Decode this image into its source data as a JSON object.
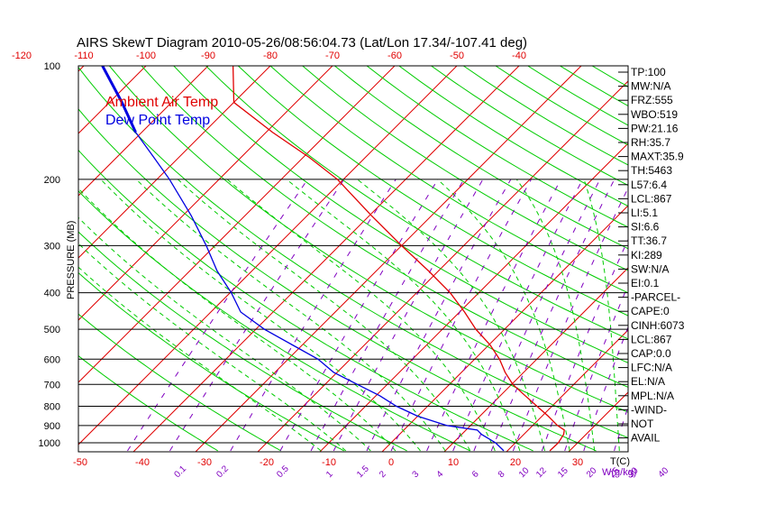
{
  "title": "AIRS SkewT Diagram 2010-05-26/08:56:04.73 (Lat/Lon 17.34/-107.41 deg)",
  "colors": {
    "temp": "#e00000",
    "dewpoint": "#0000e0",
    "isotherm": "#e00000",
    "dry_adiabat": "#00cc00",
    "moist_adiabat": "#00cc00",
    "mixing_ratio": "#8000c0",
    "frame": "#000000"
  },
  "chart_data": {
    "type": "line",
    "title": "AIRS SkewT Diagram 2010-05-26/08:56:04.73 (Lat/Lon 17.34/-107.41 deg)",
    "ylabel": "PRESSURE (MB)",
    "xlabel": "T(C)",
    "mixing_ratio_label": "W(g/kg)",
    "pressure_ticks": [
      "100",
      "200",
      "300",
      "400",
      "500",
      "600",
      "700",
      "800",
      "900",
      "1000"
    ],
    "bottom_temp_ticks": [
      "-50",
      "-40",
      "-30",
      "-20",
      "-10",
      "0",
      "10",
      "20",
      "30"
    ],
    "top_temp_ticks": [
      "-120",
      "-110",
      "-100",
      "-90",
      "-80",
      "-70",
      "-60",
      "-50",
      "-40"
    ],
    "mixing_ratio_ticks": [
      "0.1",
      "0.2",
      "0.5",
      "1",
      "1.5",
      "2",
      "3",
      "4",
      "6",
      "8",
      "10",
      "12",
      "15",
      "20",
      "25",
      "30",
      "40"
    ],
    "ylim": [
      1050,
      100
    ],
    "series": [
      {
        "name": "Ambient Air Temp",
        "pressure": [
          1050,
          1000,
          950,
          925,
          900,
          850,
          800,
          750,
          700,
          650,
          600,
          550,
          500,
          450,
          400,
          350,
          300,
          250,
          200,
          175,
          150,
          125,
          100
        ],
        "values": [
          26.8,
          26.9,
          26.4,
          25.8,
          24.0,
          21.0,
          17.6,
          14.0,
          10.2,
          7.0,
          4.0,
          0.2,
          -4.6,
          -9.2,
          -14.6,
          -21.6,
          -30.0,
          -39.6,
          -51.0,
          -59.0,
          -69.0,
          -80.0,
          -86.0
        ]
      },
      {
        "name": "Dew Point Temp",
        "pressure": [
          1050,
          1000,
          950,
          925,
          900,
          850,
          800,
          750,
          700,
          650,
          600,
          550,
          500,
          450,
          400,
          350,
          300,
          250,
          200,
          175,
          150,
          125,
          100
        ],
        "values": [
          19.4,
          16.8,
          13.2,
          11.8,
          6.2,
          0.0,
          -5.0,
          -9.4,
          -14.8,
          -20.6,
          -25.2,
          -31.6,
          -38.6,
          -45.2,
          -49.8,
          -55.6,
          -61.4,
          -68.6,
          -78.0,
          -84.0,
          -91.0,
          -98.0,
          -107.0
        ]
      }
    ]
  },
  "indices": [
    "TP:100",
    "MW:N/A",
    "FRZ:555",
    "WBO:519",
    "PW:21.16",
    "RH:35.7",
    "MAXT:35.9",
    "TH:5463",
    "L57:6.4",
    "LCL:867",
    "LI:5.1",
    "SI:6.6",
    "TT:36.7",
    "KI:289",
    "SW:N/A",
    "EI:0.1",
    "-PARCEL-",
    "CAPE:0",
    "CINH:6073",
    "LCL:867",
    "CAP:0.0",
    "LFC:N/A",
    "EL:N/A",
    "MPL:N/A",
    "-WIND-",
    "NOT",
    "AVAIL"
  ]
}
